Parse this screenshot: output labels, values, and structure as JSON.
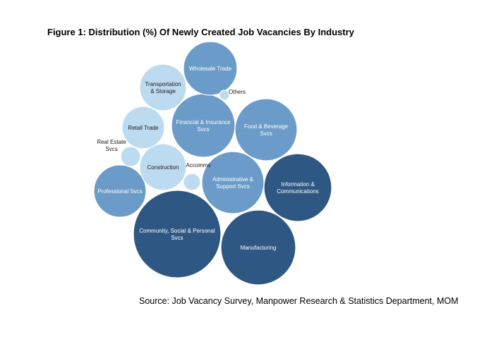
{
  "title": "Figure 1: Distribution (%) Of Newly Created Job Vacancies By Industry",
  "source": "Source: Job Vacancy Survey, Manpower Research & Statistics Department, MOM",
  "chart_data": {
    "type": "bubble",
    "title": "Figure 1: Distribution (%) Of Newly Created Job Vacancies By Industry",
    "colors": {
      "dark": "#2e5783",
      "mid": "#6b9bc8",
      "light": "#bcdaf0"
    },
    "series": [
      {
        "name": "Community, Social & Personal Svcs",
        "lines": [
          "Community, Social & Personal",
          "Svcs"
        ],
        "value": 20.0,
        "tone": "dark"
      },
      {
        "name": "Manufacturing",
        "lines": [
          "Manufacturing"
        ],
        "value": 13.8,
        "tone": "dark"
      },
      {
        "name": "Information & Communications",
        "lines": [
          "Information &",
          "Communications"
        ],
        "value": 9.0,
        "tone": "dark"
      },
      {
        "name": "Financial & Insurance Svcs",
        "lines": [
          "Financial & Insurance",
          "Svcs"
        ],
        "value": 8.2,
        "tone": "mid"
      },
      {
        "name": "Food & Beverage Svcs",
        "lines": [
          "Food & Beverage",
          "Svcs"
        ],
        "value": 7.6,
        "tone": "mid"
      },
      {
        "name": "Administrative & Support Svcs",
        "lines": [
          "Administrative &",
          "Support Svcs"
        ],
        "value": 7.5,
        "tone": "mid"
      },
      {
        "name": "Wholesale Trade",
        "lines": [
          "Wholesale Trade"
        ],
        "value": 5.9,
        "tone": "mid"
      },
      {
        "name": "Professional Svcs",
        "lines": [
          "Professional Svcs"
        ],
        "value": 5.4,
        "tone": "mid"
      },
      {
        "name": "Construction",
        "lines": [
          "Construction"
        ],
        "value": 4.5,
        "tone": "light"
      },
      {
        "name": "Transportation & Storage",
        "lines": [
          "Transportation",
          "& Storage"
        ],
        "value": 4.4,
        "tone": "light"
      },
      {
        "name": "Retail Trade",
        "lines": [
          "Retail Trade"
        ],
        "value": 3.5,
        "tone": "light"
      },
      {
        "name": "Real Estate Svcs",
        "lines": [
          "Real Estate",
          "Svcs"
        ],
        "value": 0.6,
        "tone": "light",
        "outside": true
      },
      {
        "name": "Accomms",
        "lines": [
          "Accomms"
        ],
        "value": 0.5,
        "tone": "light",
        "outside": true
      },
      {
        "name": "Others",
        "lines": [
          "Others"
        ],
        "value": 0.2,
        "tone": "light",
        "outside": true
      }
    ]
  }
}
